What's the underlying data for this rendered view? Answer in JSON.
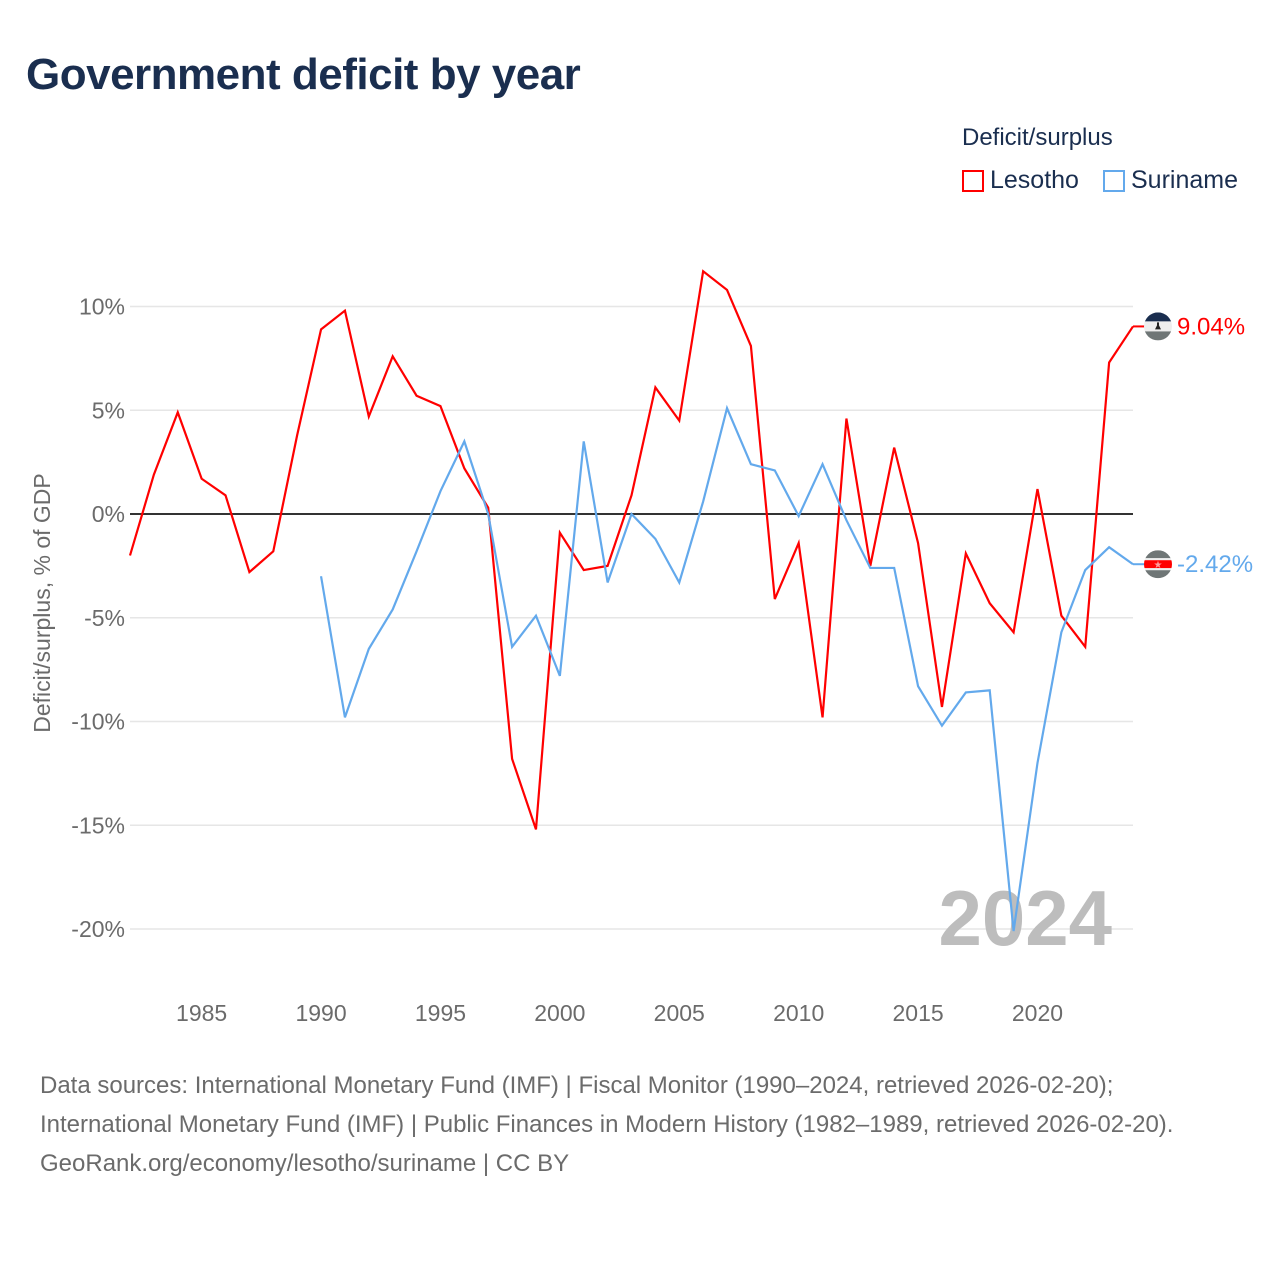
{
  "title": "Government deficit by year",
  "legend": {
    "title": "Deficit/surplus",
    "items": [
      {
        "label": "Lesotho",
        "color": "#ff0000"
      },
      {
        "label": "Suriname",
        "color": "#63a9ec"
      }
    ]
  },
  "chart_data": {
    "type": "line",
    "title": "Government deficit by year",
    "xlabel": "",
    "ylabel": "Deficit/surplus, % of GDP",
    "xlim": [
      1982,
      2024
    ],
    "ylim": [
      -22,
      12
    ],
    "x_ticks": [
      1985,
      1990,
      1995,
      2000,
      2005,
      2010,
      2015,
      2020
    ],
    "y_ticks": [
      {
        "v": 10,
        "label": "10%"
      },
      {
        "v": 5,
        "label": "5%"
      },
      {
        "v": 0,
        "label": "0%"
      },
      {
        "v": -5,
        "label": "-5%"
      },
      {
        "v": -10,
        "label": "-10%"
      },
      {
        "v": -15,
        "label": "-15%"
      },
      {
        "v": -20,
        "label": "-20%"
      }
    ],
    "grid": true,
    "year_watermark": "2024",
    "series": [
      {
        "name": "Lesotho",
        "color": "#ff0000",
        "end_label": "9.04%",
        "x": [
          1982,
          1983,
          1984,
          1985,
          1986,
          1987,
          1988,
          1989,
          1990,
          1991,
          1992,
          1993,
          1994,
          1995,
          1996,
          1997,
          1998,
          1999,
          2000,
          2001,
          2002,
          2003,
          2004,
          2005,
          2006,
          2007,
          2008,
          2009,
          2010,
          2011,
          2012,
          2013,
          2014,
          2015,
          2016,
          2017,
          2018,
          2019,
          2020,
          2021,
          2022,
          2023,
          2024
        ],
        "values": [
          -2.0,
          1.9,
          4.9,
          1.7,
          0.9,
          -2.8,
          -1.8,
          3.8,
          8.9,
          9.8,
          4.7,
          7.6,
          5.7,
          5.2,
          2.2,
          0.3,
          -11.8,
          -15.2,
          -0.9,
          -2.7,
          -2.5,
          0.9,
          6.1,
          4.5,
          11.7,
          10.8,
          8.1,
          -4.1,
          -1.4,
          -9.8,
          4.6,
          -2.5,
          3.2,
          -1.4,
          -9.3,
          -1.9,
          -4.3,
          -5.7,
          1.2,
          -4.9,
          -6.4,
          7.3,
          9.04
        ]
      },
      {
        "name": "Suriname",
        "color": "#63a9ec",
        "end_label": "-2.42%",
        "x": [
          1990,
          1991,
          1992,
          1993,
          1994,
          1995,
          1996,
          1997,
          1998,
          1999,
          2000,
          2001,
          2002,
          2003,
          2004,
          2005,
          2006,
          2007,
          2008,
          2009,
          2010,
          2011,
          2012,
          2013,
          2014,
          2015,
          2016,
          2017,
          2018,
          2019,
          2020,
          2021,
          2022,
          2023,
          2024
        ],
        "values": [
          -3.0,
          -9.8,
          -6.5,
          -4.6,
          -1.8,
          1.1,
          3.5,
          0.0,
          -6.4,
          -4.9,
          -7.8,
          3.5,
          -3.3,
          0.0,
          -1.2,
          -3.3,
          0.6,
          5.1,
          2.4,
          2.1,
          -0.1,
          2.4,
          -0.3,
          -2.6,
          -2.6,
          -8.3,
          -10.2,
          -8.6,
          -8.5,
          -20.1,
          -12.0,
          -5.7,
          -2.7,
          -1.6,
          -2.42
        ]
      }
    ]
  },
  "footer": {
    "sources": "Data sources: International Monetary Fund (IMF) | Fiscal Monitor (1990–2024, retrieved 2026-02-20); International Monetary Fund (IMF) | Public Finances in Modern History (1982–1989, retrieved 2026-02-20).",
    "credit": "GeoRank.org/economy/lesotho/suriname | CC BY"
  }
}
